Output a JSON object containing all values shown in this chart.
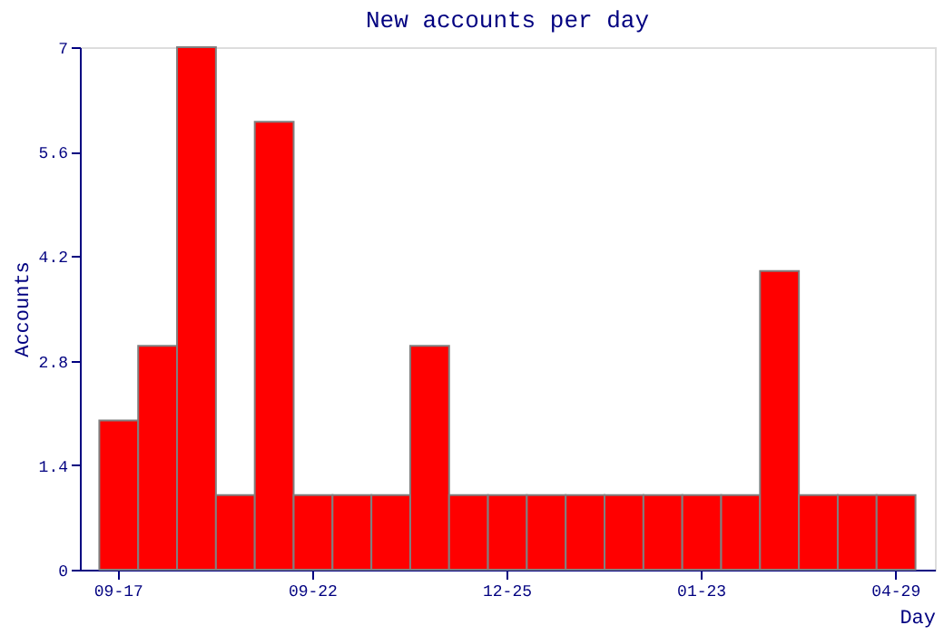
{
  "chart_data": {
    "type": "bar",
    "title": "New accounts per day",
    "xlabel": "Day",
    "ylabel": "Accounts",
    "categories": [
      "09-17",
      null,
      null,
      null,
      null,
      "09-22",
      null,
      null,
      null,
      null,
      "12-25",
      null,
      null,
      null,
      null,
      "01-23",
      null,
      null,
      null,
      null,
      "04-29"
    ],
    "values": [
      2,
      3,
      7,
      1,
      6,
      1,
      1,
      1,
      3,
      1,
      1,
      1,
      1,
      1,
      1,
      1,
      1,
      4,
      1,
      1,
      1
    ],
    "color": "#ff0000",
    "ylim": [
      0,
      7
    ],
    "yticks": [
      0,
      1.4,
      2.8,
      4.2,
      5.6,
      7
    ],
    "grid": false
  }
}
